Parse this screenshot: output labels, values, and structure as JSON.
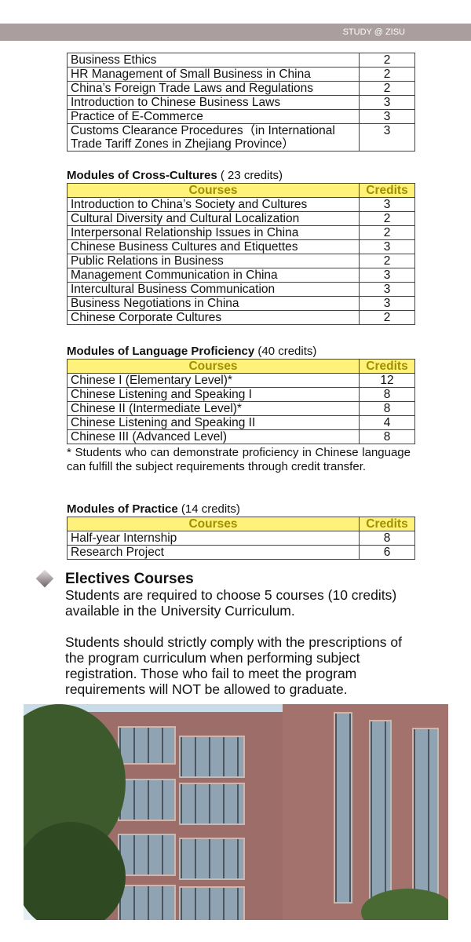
{
  "header": {
    "label": "STUDY @ ZISU"
  },
  "table_top": {
    "rows": [
      {
        "course": "Business Ethics",
        "credits": "2"
      },
      {
        "course": "HR Management of Small Business in China",
        "credits": "2"
      },
      {
        "course": "China’s Foreign Trade Laws and Regulations",
        "credits": "2"
      },
      {
        "course": "Introduction to Chinese Business Laws",
        "credits": "3"
      },
      {
        "course": "Practice of E-Commerce",
        "credits": "3"
      },
      {
        "course": "Customs Clearance Procedures（in International Trade Tariff Zones in Zhejiang Province）",
        "credits": "3"
      }
    ]
  },
  "cross_cultures": {
    "title": "Modules of Cross-Cultures",
    "credits_note": " ( 23 credits)",
    "col_courses": "Courses",
    "col_credits": "Credits",
    "rows": [
      {
        "course": "Introduction to China’s Society and Cultures",
        "credits": "3"
      },
      {
        "course": "Cultural Diversity and Cultural Localization",
        "credits": "2"
      },
      {
        "course": "Interpersonal Relationship Issues in China",
        "credits": "2"
      },
      {
        "course": "Chinese Business Cultures and Etiquettes",
        "credits": "3"
      },
      {
        "course": "Public Relations in Business",
        "credits": "2"
      },
      {
        "course": "Management Communication in China",
        "credits": "3"
      },
      {
        "course": "Intercultural Business Communication",
        "credits": "3"
      },
      {
        "course": "Business Negotiations in China",
        "credits": "3"
      },
      {
        "course": "Chinese Corporate Cultures",
        "credits": "2"
      }
    ]
  },
  "language": {
    "title": "Modules of Language Proficiency",
    "credits_note": " (40 credits)",
    "col_courses": "Courses",
    "col_credits": "Credits",
    "rows": [
      {
        "course": "Chinese I (Elementary Level)*",
        "credits": "12"
      },
      {
        "course": "Chinese Listening and Speaking I",
        "credits": "8"
      },
      {
        "course": "Chinese II (Intermediate Level)*",
        "credits": "8"
      },
      {
        "course": "Chinese Listening and Speaking II",
        "credits": "4"
      },
      {
        "course": "Chinese III (Advanced Level)",
        "credits": "8"
      }
    ],
    "note": "* Students who can demonstrate proficiency in Chinese language can fulfill the subject requirements through credit transfer."
  },
  "practice": {
    "title": "Modules of Practice",
    "credits_note": " (14 credits)",
    "col_courses": "Courses",
    "col_credits": "Credits",
    "rows": [
      {
        "course": "Half-year Internship",
        "credits": "8"
      },
      {
        "course": "Research Project",
        "credits": "6"
      }
    ]
  },
  "electives": {
    "title": "Electives Courses",
    "p1": "Students are required to choose 5 courses (10 credits) available in the University Curriculum.",
    "p2": "Students should strictly comply with the prescriptions of the program curriculum when performing subject registration. Those who fail to meet the program requirements will NOT be allowed to graduate."
  }
}
